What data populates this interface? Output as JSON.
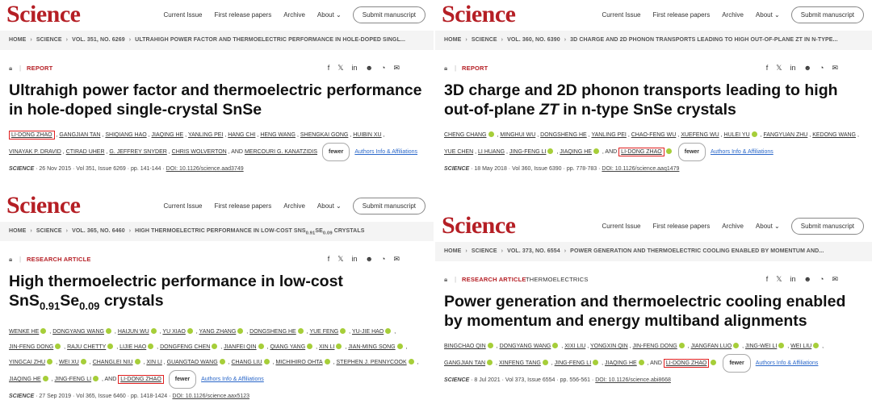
{
  "brand": "Science",
  "nav": {
    "current_issue": "Current Issue",
    "first_release": "First release papers",
    "archive": "Archive",
    "about": "About ⌄",
    "submit": "Submit manuscript"
  },
  "share_icons": [
    "f",
    "𝕏",
    "in",
    "☻",
    "◔",
    "✉"
  ],
  "fewer_label": "fewer",
  "affiliations_label": "Authors Info & Affiliations",
  "journal_label": "SCIENCE",
  "panels": [
    {
      "crumbs": [
        "HOME",
        "SCIENCE",
        "VOL. 351, NO. 6269",
        "ULTRAHIGH POWER FACTOR AND THERMOELECTRIC PERFORMANCE IN HOLE-DOPED SINGL..."
      ],
      "type": "REPORT",
      "subject": "",
      "title": "Ultrahigh power factor and thermoelectric performance in hole-doped single-crystal SnSe",
      "authors": [
        {
          "name": "LI-DONG ZHAO",
          "orcid": false,
          "hl": true
        },
        {
          "name": "GANGJIAN TAN",
          "orcid": false
        },
        {
          "name": "SHIQIANG HAO",
          "orcid": false
        },
        {
          "name": "JIAQING HE",
          "orcid": false
        },
        {
          "name": "YANLING PEI",
          "orcid": false
        },
        {
          "name": "HANG CHI",
          "orcid": false
        },
        {
          "name": "HENG WANG",
          "orcid": false
        },
        {
          "name": "SHENGKAI GONG",
          "orcid": false
        },
        {
          "name": "HUIBIN XU",
          "orcid": false
        },
        {
          "name": "VINAYAK P. DRAVID",
          "orcid": false
        },
        {
          "name": "CTIRAD UHER",
          "orcid": false
        },
        {
          "name": "G. JEFFREY SNYDER",
          "orcid": false
        },
        {
          "name": "CHRIS WOLVERTON",
          "orcid": false
        },
        {
          "name": "MERCOURI G. KANATZIDIS",
          "orcid": false,
          "and": true
        }
      ],
      "date": "26 Nov 2015",
      "volume": "Vol 351, Issue 6269",
      "pages": "pp. 141-144",
      "doi": "DOI: 10.1126/science.aad3749"
    },
    {
      "crumbs": [
        "HOME",
        "SCIENCE",
        "VOL. 360, NO. 6390",
        "3D CHARGE AND 2D PHONON TRANSPORTS LEADING TO HIGH OUT-OF-PLANE ZT IN N-TYPE..."
      ],
      "type": "REPORT",
      "subject": "",
      "title_parts": {
        "a": "3D charge and 2D phonon transports leading to high out-of-plane ",
        "i": "ZT",
        "b": " in n-type SnSe crystals"
      },
      "authors": [
        {
          "name": "CHENG CHANG",
          "orcid": true
        },
        {
          "name": "MINGHUI WU",
          "orcid": false
        },
        {
          "name": "DONGSHENG HE",
          "orcid": false
        },
        {
          "name": "YANLING PEI",
          "orcid": false
        },
        {
          "name": "CHAO-FENG WU",
          "orcid": false
        },
        {
          "name": "XUEFENG WU",
          "orcid": false
        },
        {
          "name": "HULEI YU",
          "orcid": true
        },
        {
          "name": "FANGYUAN ZHU",
          "orcid": false
        },
        {
          "name": "KEDONG WANG",
          "orcid": false
        },
        {
          "name": "YUE CHEN",
          "orcid": false
        },
        {
          "name": "LI HUANG",
          "orcid": false
        },
        {
          "name": "JING-FENG LI",
          "orcid": true
        },
        {
          "name": "JIAQING HE",
          "orcid": true
        },
        {
          "name": "LI-DONG ZHAO",
          "orcid": true,
          "hl": true,
          "and": true
        }
      ],
      "date": "18 May 2018",
      "volume": "Vol 360, Issue 6390",
      "pages": "pp. 778-783",
      "doi": "DOI: 10.1126/science.aaq1479"
    },
    {
      "crumbs": [
        "HOME",
        "SCIENCE",
        "VOL. 365, NO. 6460",
        "HIGH THERMOELECTRIC PERFORMANCE IN LOW-COST SNS"
      ],
      "crumb_sub": {
        "a": "0.91",
        "b": "SE",
        "c": "0.09",
        "d": " CRYSTALS"
      },
      "type": "RESEARCH ARTICLE",
      "subject": "",
      "title_parts": {
        "a": "High thermoelectric performance in low-cost SnS",
        "s1": "0.91",
        "m": "Se",
        "s2": "0.09",
        "b": " crystals"
      },
      "authors": [
        {
          "name": "WENKE HE",
          "orcid": true
        },
        {
          "name": "DONGYANG WANG",
          "orcid": true
        },
        {
          "name": "HAIJUN WU",
          "orcid": true
        },
        {
          "name": "YU XIAO",
          "orcid": true
        },
        {
          "name": "YANG ZHANG",
          "orcid": true
        },
        {
          "name": "DONGSHENG HE",
          "orcid": true
        },
        {
          "name": "YUE FENG",
          "orcid": true
        },
        {
          "name": "YU-JIE HAO",
          "orcid": true
        },
        {
          "name": "JIN-FENG DONG",
          "orcid": true
        },
        {
          "name": "RAJU CHETTY",
          "orcid": true
        },
        {
          "name": "LIJIE HAO",
          "orcid": true
        },
        {
          "name": "DONGFENG CHEN",
          "orcid": true
        },
        {
          "name": "JIANFEI QIN",
          "orcid": true
        },
        {
          "name": "QIANG YANG",
          "orcid": true
        },
        {
          "name": "XIN LI",
          "orcid": true
        },
        {
          "name": "JIAN-MING SONG",
          "orcid": true
        },
        {
          "name": "YINGCAI ZHU",
          "orcid": true
        },
        {
          "name": "WEI XU",
          "orcid": true
        },
        {
          "name": "CHANGLEI NIU",
          "orcid": true
        },
        {
          "name": "XIN LI",
          "orcid": false
        },
        {
          "name": "GUANGTAO WANG",
          "orcid": true
        },
        {
          "name": "CHANG LIU",
          "orcid": true
        },
        {
          "name": "MICHIHIRO OHTA",
          "orcid": true
        },
        {
          "name": "STEPHEN J. PENNYCOOK",
          "orcid": true
        },
        {
          "name": "JIAQING HE",
          "orcid": true
        },
        {
          "name": "JING-FENG LI",
          "orcid": true
        },
        {
          "name": "LI-DONG ZHAO",
          "orcid": false,
          "hl": true,
          "and": true
        }
      ],
      "date": "27 Sep 2019",
      "volume": "Vol 365, Issue 6460",
      "pages": "pp. 1418-1424",
      "doi": "DOI: 10.1126/science.aax5123"
    },
    {
      "crumbs": [
        "HOME",
        "SCIENCE",
        "VOL. 373, NO. 6554",
        "POWER GENERATION AND THERMOELECTRIC COOLING ENABLED BY MOMENTUM AND..."
      ],
      "type": "RESEARCH ARTICLE",
      "subject": "THERMOELECTRICS",
      "title": "Power generation and thermoelectric cooling enabled by momentum and energy multiband alignments",
      "authors": [
        {
          "name": "BINGCHAO QIN",
          "orcid": true
        },
        {
          "name": "DONGYANG WANG",
          "orcid": true
        },
        {
          "name": "XIXI LIU",
          "orcid": false
        },
        {
          "name": "YONGXIN QIN",
          "orcid": false
        },
        {
          "name": "JIN-FENG DONG",
          "orcid": true
        },
        {
          "name": "JIANGFAN LUO",
          "orcid": true
        },
        {
          "name": "JING-WEI LI",
          "orcid": true
        },
        {
          "name": "WEI LIU",
          "orcid": true
        },
        {
          "name": "GANGJIAN TAN",
          "orcid": true
        },
        {
          "name": "XINFENG TANG",
          "orcid": true
        },
        {
          "name": "JING-FENG LI",
          "orcid": true
        },
        {
          "name": "JIAQING HE",
          "orcid": true
        },
        {
          "name": "LI-DONG ZHAO",
          "orcid": true,
          "hl": true,
          "and": true
        }
      ],
      "date": "8 Jul 2021",
      "volume": "Vol 373, Issue 6554",
      "pages": "pp. 556-561",
      "doi": "DOI: 10.1126/science.abi8668"
    }
  ]
}
